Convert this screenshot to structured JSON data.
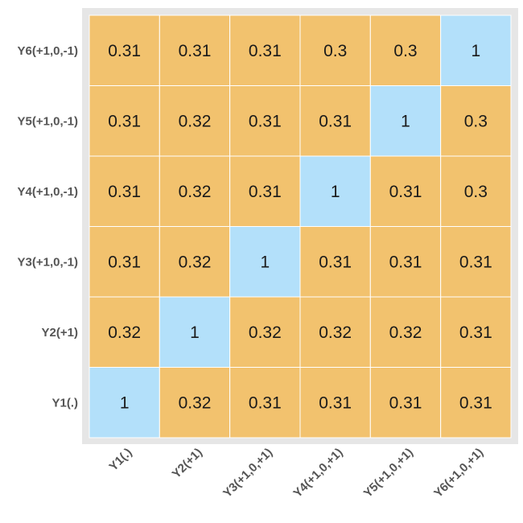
{
  "chart_data": {
    "type": "heatmap",
    "title": "",
    "xlabel": "",
    "ylabel": "",
    "x_categories": [
      "Y1(.)",
      "Y2(+1)",
      "Y3(+1,0,+1)",
      "Y4(+1,0,+1)",
      "Y5(+1,0,+1)",
      "Y6(+1,0,+1)"
    ],
    "y_categories": [
      "Y6(+1,0,-1)",
      "Y5(+1,0,-1)",
      "Y4(+1,0,-1)",
      "Y3(+1,0,-1)",
      "Y2(+1)",
      "Y1(.)"
    ],
    "values": [
      [
        "0.31",
        "0.31",
        "0.31",
        "0.3",
        "0.3",
        "1"
      ],
      [
        "0.31",
        "0.32",
        "0.31",
        "0.31",
        "1",
        "0.3"
      ],
      [
        "0.31",
        "0.32",
        "0.31",
        "1",
        "0.31",
        "0.3"
      ],
      [
        "0.31",
        "0.32",
        "1",
        "0.31",
        "0.31",
        "0.31"
      ],
      [
        "0.32",
        "1",
        "0.32",
        "0.32",
        "0.32",
        "0.31"
      ],
      [
        "1",
        "0.32",
        "0.31",
        "0.31",
        "0.31",
        "0.31"
      ]
    ],
    "colors": {
      "off_diagonal": "#f2c26e",
      "diagonal": "#b3e0fa",
      "grid_line": "#ffffff",
      "panel_background": "#e6e6e6"
    }
  }
}
